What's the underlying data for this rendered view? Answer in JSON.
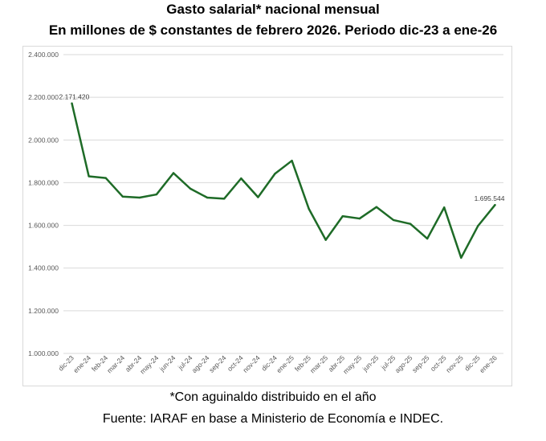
{
  "header": {
    "title": "Gasto salarial* nacional mensual",
    "subtitle": "En millones de $ constantes de febrero 2026. Periodo dic-23 a ene-26"
  },
  "footer": {
    "note": "*Con aguinaldo distribuido en el año",
    "source": "Fuente: IARAF en base a Ministerio de Economía e INDEC."
  },
  "chart_data": {
    "type": "line",
    "title": "Gasto salarial* nacional mensual",
    "subtitle": "En millones de $ constantes de febrero 2026. Periodo dic-23 a ene-26",
    "categories": [
      "dic-23",
      "ene-24",
      "feb-24",
      "mar-24",
      "abr-24",
      "may-24",
      "jun-24",
      "jul-24",
      "ago-24",
      "sep-24",
      "oct-24",
      "nov-24",
      "dic-24",
      "ene-25",
      "feb-25",
      "mar-25",
      "abr-25",
      "may-25",
      "jun-25",
      "jul-25",
      "ago-25",
      "sep-25",
      "oct-25",
      "nov-25",
      "dic-25",
      "ene-26"
    ],
    "series": [
      {
        "color": "#1e6b27",
        "values": [
          2171420,
          1830000,
          1822000,
          1735000,
          1730000,
          1745000,
          1845000,
          1772000,
          1730000,
          1725000,
          1820000,
          1732000,
          1842000,
          1903000,
          1678000,
          1532000,
          1643000,
          1632000,
          1686000,
          1625000,
          1607000,
          1538000,
          1684000,
          1448000,
          1598000,
          1695544
        ]
      }
    ],
    "data_labels": [
      {
        "category": "dic-23",
        "text": "2.171.420"
      },
      {
        "category": "ene-26",
        "text": "1.695.544"
      }
    ],
    "yticks": [
      "1.000.000",
      "1.200.000",
      "1.400.000",
      "1.600.000",
      "1.800.000",
      "2.000.000",
      "2.200.000",
      "2.400.000"
    ],
    "ylim": [
      1000000,
      2400000
    ],
    "xlabel": "",
    "ylabel": "",
    "grid": true,
    "legend": "none"
  }
}
